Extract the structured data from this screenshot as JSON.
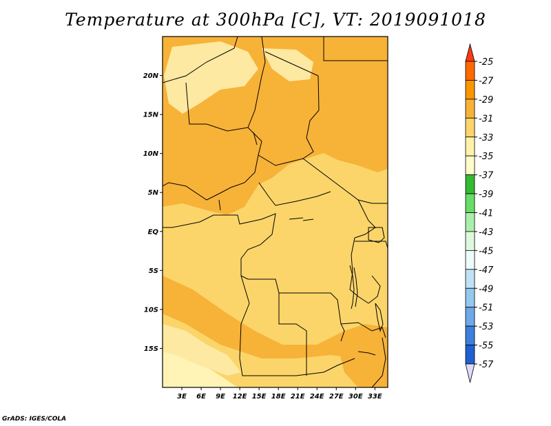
{
  "title": "Temperature at 300hPa [C], VT: 2019091018",
  "credit": "GrADS: IGES/COLA",
  "map": {
    "lon_range": [
      0,
      35
    ],
    "lat_range": [
      -20,
      25
    ],
    "lat_ticks": [
      {
        "value": 20,
        "label": "20N"
      },
      {
        "value": 15,
        "label": "15N"
      },
      {
        "value": 10,
        "label": "10N"
      },
      {
        "value": 5,
        "label": "5N"
      },
      {
        "value": 0,
        "label": "EQ"
      },
      {
        "value": -5,
        "label": "5S"
      },
      {
        "value": -10,
        "label": "10S"
      },
      {
        "value": -15,
        "label": "15S"
      }
    ],
    "lon_ticks": [
      {
        "value": 3,
        "label": "3E"
      },
      {
        "value": 6,
        "label": "6E"
      },
      {
        "value": 9,
        "label": "9E"
      },
      {
        "value": 12,
        "label": "12E"
      },
      {
        "value": 15,
        "label": "15E"
      },
      {
        "value": 18,
        "label": "18E"
      },
      {
        "value": 21,
        "label": "21E"
      },
      {
        "value": 24,
        "label": "24E"
      },
      {
        "value": 27,
        "label": "27E"
      },
      {
        "value": 30,
        "label": "30E"
      },
      {
        "value": 33,
        "label": "33E"
      }
    ]
  },
  "colorbar": {
    "levels": [
      "-25",
      "-27",
      "-29",
      "-31",
      "-33",
      "-35",
      "-37",
      "-39",
      "-41",
      "-43",
      "-45",
      "-47",
      "-49",
      "-51",
      "-53",
      "-55",
      "-57"
    ],
    "colors": [
      "#ff3a0f",
      "#ff6a00",
      "#fa9600",
      "#f7b238",
      "#fbd56a",
      "#fff2a8",
      "#fffccc",
      "#33bb33",
      "#66dd66",
      "#aaeeaa",
      "#ddf8dd",
      "#eefcfc",
      "#bfe3f5",
      "#95c8ef",
      "#6fa8e8",
      "#3c80dc",
      "#1f5fd0",
      "#0c3ab0",
      "#06147a",
      "#dcdcfc"
    ]
  },
  "fills": {
    "base": "#fbd56a",
    "warm": "#f7b238",
    "light": "#fde9a1",
    "pale": "#fff3b5"
  }
}
